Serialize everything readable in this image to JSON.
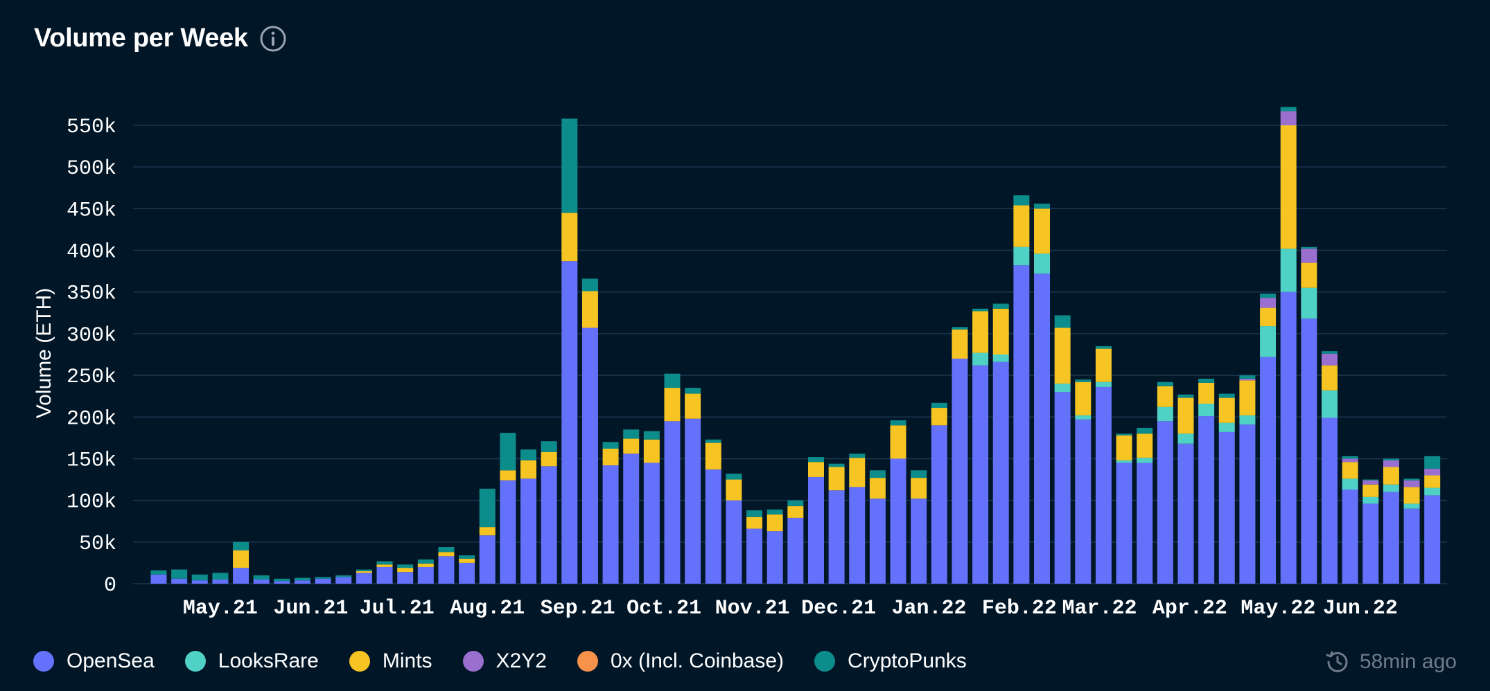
{
  "header": {
    "title": "Volume per Week",
    "info_icon": "info-icon"
  },
  "footer": {
    "updated": "58min ago",
    "updated_icon": "refresh-clock-icon"
  },
  "chart_data": {
    "type": "bar",
    "stacked": true,
    "title": "Volume per Week",
    "xlabel": "",
    "ylabel": "Volume (ETH)",
    "ylim": [
      0,
      570000
    ],
    "yticks": [
      0,
      50000,
      100000,
      150000,
      200000,
      250000,
      300000,
      350000,
      400000,
      450000,
      500000,
      550000
    ],
    "ytick_labels": [
      "0",
      "50k",
      "100k",
      "150k",
      "200k",
      "250k",
      "300k",
      "350k",
      "400k",
      "450k",
      "500k",
      "550k"
    ],
    "month_labels": [
      {
        "label": "May.21",
        "week": 3
      },
      {
        "label": "Jun.21",
        "week": 7.4
      },
      {
        "label": "Jul.21",
        "week": 11.6
      },
      {
        "label": "Aug.21",
        "week": 16
      },
      {
        "label": "Sep.21",
        "week": 20.4
      },
      {
        "label": "Oct.21",
        "week": 24.6
      },
      {
        "label": "Nov.21",
        "week": 28.9
      },
      {
        "label": "Dec.21",
        "week": 33.1
      },
      {
        "label": "Jan.22",
        "week": 37.5
      },
      {
        "label": "Feb.22",
        "week": 41.9
      },
      {
        "label": "Mar.22",
        "week": 45.8
      },
      {
        "label": "Apr.22",
        "week": 50.2
      },
      {
        "label": "May.22",
        "week": 54.5
      },
      {
        "label": "Jun.22",
        "week": 58.5
      }
    ],
    "legend_position": "bottom-left",
    "grid": true,
    "series": [
      {
        "name": "OpenSea",
        "color": "#6471fa",
        "values": [
          11000,
          6000,
          4000,
          5000,
          19000,
          5000,
          3000,
          4000,
          6000,
          8000,
          13000,
          20000,
          14000,
          20000,
          33000,
          25000,
          58000,
          124000,
          126000,
          141000,
          387000,
          307000,
          142000,
          156000,
          145000,
          195000,
          198000,
          137000,
          100000,
          66000,
          63000,
          79000,
          128000,
          112000,
          116000,
          102000,
          150000,
          102000,
          190000,
          270000,
          262000,
          266000,
          382000,
          372000,
          230000,
          197000,
          236000,
          145000,
          145000,
          195000,
          168000,
          201000,
          182000,
          191000,
          272000,
          350000,
          318000,
          199000,
          113000,
          96000,
          110000,
          90000,
          106000
        ]
      },
      {
        "name": "LooksRare",
        "color": "#4fd1c5",
        "values": [
          0,
          0,
          0,
          0,
          0,
          0,
          0,
          0,
          0,
          0,
          0,
          0,
          0,
          0,
          0,
          0,
          0,
          0,
          0,
          0,
          0,
          0,
          0,
          0,
          0,
          0,
          0,
          0,
          0,
          0,
          0,
          0,
          0,
          0,
          0,
          0,
          0,
          0,
          0,
          0,
          15000,
          9000,
          22000,
          24000,
          10000,
          5000,
          6000,
          3000,
          6000,
          17000,
          12000,
          15000,
          11000,
          11000,
          37000,
          52000,
          37000,
          33000,
          13000,
          8000,
          9000,
          6000,
          9000
        ]
      },
      {
        "name": "Mints",
        "color": "#f6c523",
        "values": [
          0,
          0,
          0,
          0,
          21000,
          0,
          0,
          0,
          0,
          0,
          2000,
          3000,
          5000,
          4000,
          5000,
          5000,
          10000,
          12000,
          22000,
          17000,
          58000,
          44000,
          20000,
          18000,
          28000,
          40000,
          30000,
          32000,
          25000,
          14000,
          20000,
          14000,
          18000,
          28000,
          35000,
          25000,
          40000,
          25000,
          21000,
          35000,
          50000,
          55000,
          50000,
          54000,
          67000,
          40000,
          40000,
          30000,
          29000,
          25000,
          43000,
          25000,
          30000,
          42000,
          22000,
          148000,
          30000,
          30000,
          20000,
          15000,
          21000,
          20000,
          15000
        ]
      },
      {
        "name": "X2Y2",
        "color": "#9b6fcf",
        "values": [
          0,
          0,
          0,
          0,
          0,
          0,
          0,
          0,
          0,
          0,
          0,
          0,
          0,
          0,
          0,
          0,
          0,
          0,
          0,
          0,
          0,
          0,
          0,
          0,
          0,
          0,
          0,
          0,
          0,
          0,
          0,
          0,
          0,
          0,
          0,
          0,
          0,
          0,
          0,
          0,
          0,
          0,
          0,
          0,
          0,
          0,
          0,
          0,
          0,
          0,
          0,
          0,
          0,
          2000,
          12000,
          17000,
          17000,
          14000,
          4000,
          5000,
          8000,
          8000,
          8000
        ]
      },
      {
        "name": "0x (Incl. Coinbase)",
        "color": "#f6924a",
        "values": [
          0,
          0,
          0,
          0,
          0,
          0,
          0,
          0,
          0,
          0,
          0,
          0,
          0,
          0,
          0,
          0,
          0,
          0,
          0,
          0,
          0,
          0,
          0,
          0,
          0,
          0,
          0,
          0,
          0,
          0,
          0,
          0,
          0,
          0,
          0,
          0,
          0,
          0,
          0,
          0,
          0,
          0,
          0,
          0,
          0,
          0,
          0,
          0,
          0,
          0,
          0,
          0,
          0,
          0,
          0,
          0,
          0,
          0,
          0,
          0,
          0,
          0,
          0
        ]
      },
      {
        "name": "CryptoPunks",
        "color": "#0d8c8c",
        "values": [
          5000,
          11000,
          7000,
          8000,
          10000,
          5000,
          3000,
          3000,
          2000,
          2000,
          2000,
          4000,
          4000,
          5000,
          6000,
          4000,
          46000,
          45000,
          13000,
          13000,
          113000,
          15000,
          8000,
          11000,
          10000,
          17000,
          7000,
          4000,
          7000,
          8000,
          6000,
          7000,
          6000,
          4000,
          5000,
          9000,
          6000,
          9000,
          6000,
          3000,
          3000,
          6000,
          12000,
          6000,
          15000,
          3000,
          3000,
          2000,
          7000,
          5000,
          4000,
          5000,
          5000,
          4000,
          5000,
          5000,
          2000,
          3000,
          3000,
          1000,
          2000,
          2000,
          15000
        ]
      }
    ]
  }
}
